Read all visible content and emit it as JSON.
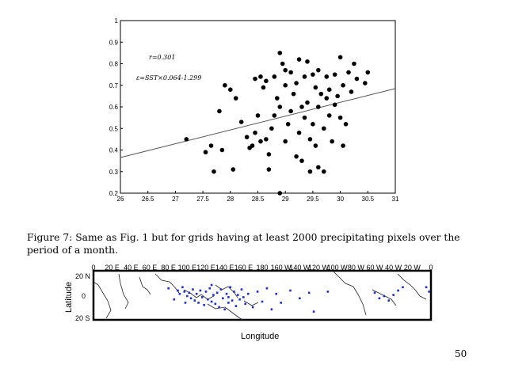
{
  "chart_data": [
    {
      "type": "scatter",
      "title": "",
      "xlabel": "",
      "ylabel": "",
      "xlim": [
        26,
        31
      ],
      "ylim": [
        0.2,
        1
      ],
      "grid": false,
      "x_ticks": [
        "26",
        "26.5",
        "27",
        "27.5",
        "28",
        "28.5",
        "29",
        "29.5",
        "30",
        "30.5",
        "31"
      ],
      "y_ticks": [
        "0.2",
        "0.3",
        "0.4",
        "0.5",
        "0.6",
        "0.7",
        "0.8",
        "0.9",
        "1"
      ],
      "annotations": [
        "r=0.301",
        "ε=SST×0.064-1.299"
      ],
      "fit_line": {
        "slope": 0.064,
        "intercept": -1.299
      },
      "points": [
        [
          27.2,
          0.45
        ],
        [
          27.55,
          0.39
        ],
        [
          27.65,
          0.42
        ],
        [
          27.7,
          0.3
        ],
        [
          27.8,
          0.58
        ],
        [
          27.85,
          0.4
        ],
        [
          27.9,
          0.7
        ],
        [
          28.0,
          0.68
        ],
        [
          28.05,
          0.31
        ],
        [
          28.1,
          0.64
        ],
        [
          28.2,
          0.53
        ],
        [
          28.3,
          0.46
        ],
        [
          28.35,
          0.41
        ],
        [
          28.4,
          0.42
        ],
        [
          28.45,
          0.73
        ],
        [
          28.45,
          0.48
        ],
        [
          28.5,
          0.56
        ],
        [
          28.55,
          0.44
        ],
        [
          28.55,
          0.74
        ],
        [
          28.6,
          0.69
        ],
        [
          28.65,
          0.72
        ],
        [
          28.65,
          0.45
        ],
        [
          28.7,
          0.31
        ],
        [
          28.7,
          0.38
        ],
        [
          28.75,
          0.5
        ],
        [
          28.8,
          0.74
        ],
        [
          28.8,
          0.56
        ],
        [
          28.85,
          0.64
        ],
        [
          28.9,
          0.85
        ],
        [
          28.9,
          0.6
        ],
        [
          28.9,
          0.2
        ],
        [
          28.95,
          0.8
        ],
        [
          29.0,
          0.7
        ],
        [
          29.0,
          0.77
        ],
        [
          29.0,
          0.44
        ],
        [
          29.05,
          0.52
        ],
        [
          29.1,
          0.76
        ],
        [
          29.1,
          0.58
        ],
        [
          29.15,
          0.66
        ],
        [
          29.2,
          0.71
        ],
        [
          29.2,
          0.37
        ],
        [
          29.25,
          0.82
        ],
        [
          29.25,
          0.48
        ],
        [
          29.3,
          0.6
        ],
        [
          29.3,
          0.35
        ],
        [
          29.35,
          0.74
        ],
        [
          29.35,
          0.55
        ],
        [
          29.4,
          0.81
        ],
        [
          29.4,
          0.62
        ],
        [
          29.45,
          0.45
        ],
        [
          29.45,
          0.3
        ],
        [
          29.5,
          0.75
        ],
        [
          29.5,
          0.52
        ],
        [
          29.55,
          0.69
        ],
        [
          29.55,
          0.42
        ],
        [
          29.6,
          0.77
        ],
        [
          29.6,
          0.6
        ],
        [
          29.6,
          0.32
        ],
        [
          29.65,
          0.66
        ],
        [
          29.7,
          0.5
        ],
        [
          29.7,
          0.3
        ],
        [
          29.75,
          0.74
        ],
        [
          29.75,
          0.64
        ],
        [
          29.8,
          0.56
        ],
        [
          29.8,
          0.68
        ],
        [
          29.85,
          0.44
        ],
        [
          29.9,
          0.75
        ],
        [
          29.9,
          0.61
        ],
        [
          29.95,
          0.65
        ],
        [
          30.0,
          0.83
        ],
        [
          30.0,
          0.55
        ],
        [
          30.05,
          0.7
        ],
        [
          30.05,
          0.42
        ],
        [
          30.1,
          0.52
        ],
        [
          30.15,
          0.76
        ],
        [
          30.2,
          0.67
        ],
        [
          30.25,
          0.8
        ],
        [
          30.3,
          0.73
        ],
        [
          30.45,
          0.71
        ],
        [
          30.5,
          0.76
        ]
      ]
    }
  ],
  "caption": "Figure 7: Same as Fig. 1 but for grids having at least 2000 precipitating pixels over the period of a month.",
  "map": {
    "lon_ticks": [
      "0",
      "20 E",
      "40 E",
      "60 E",
      "80 E",
      "100 E",
      "120 E",
      "140 E",
      "160 E",
      "180",
      "160 W",
      "140 W",
      "120 W",
      "100 W",
      "80 W",
      "60 W",
      "40 W",
      "20 W",
      "0"
    ],
    "lat_ticks": [
      "20 N",
      "0",
      "20 S"
    ],
    "xlabel": "Longitude",
    "ylabel": "Latitude",
    "dot_color": "#1a2ecc",
    "points": [
      [
        90,
        5
      ],
      [
        92,
        2
      ],
      [
        95,
        8
      ],
      [
        97,
        4
      ],
      [
        100,
        0
      ],
      [
        102,
        3
      ],
      [
        104,
        -2
      ],
      [
        106,
        6
      ],
      [
        108,
        -4
      ],
      [
        110,
        2
      ],
      [
        112,
        -6
      ],
      [
        114,
        5
      ],
      [
        116,
        -1
      ],
      [
        118,
        -8
      ],
      [
        120,
        4
      ],
      [
        122,
        -3
      ],
      [
        124,
        7
      ],
      [
        126,
        -5
      ],
      [
        128,
        1
      ],
      [
        130,
        -7
      ],
      [
        132,
        3
      ],
      [
        134,
        -10
      ],
      [
        136,
        6
      ],
      [
        138,
        -2
      ],
      [
        140,
        -12
      ],
      [
        142,
        2
      ],
      [
        144,
        -6
      ],
      [
        146,
        8
      ],
      [
        148,
        -4
      ],
      [
        150,
        4
      ],
      [
        152,
        -9
      ],
      [
        154,
        1
      ],
      [
        156,
        -3
      ],
      [
        158,
        6
      ],
      [
        160,
        -1
      ],
      [
        162,
        -7
      ],
      [
        165,
        2
      ],
      [
        170,
        -10
      ],
      [
        175,
        4
      ],
      [
        180,
        -5
      ],
      [
        185,
        7
      ],
      [
        190,
        -12
      ],
      [
        195,
        2
      ],
      [
        200,
        -6
      ],
      [
        210,
        5
      ],
      [
        220,
        -2
      ],
      [
        230,
        3
      ],
      [
        235,
        -14
      ],
      [
        250,
        4
      ],
      [
        300,
        3
      ],
      [
        305,
        -2
      ],
      [
        310,
        0
      ],
      [
        315,
        -4
      ],
      [
        320,
        1
      ],
      [
        325,
        5
      ],
      [
        330,
        8
      ],
      [
        355,
        8
      ],
      [
        358,
        4
      ],
      [
        80,
        7
      ],
      [
        86,
        -3
      ],
      [
        98,
        -6
      ],
      [
        126,
        10
      ],
      [
        144,
        -1
      ]
    ]
  },
  "page_number": "50"
}
